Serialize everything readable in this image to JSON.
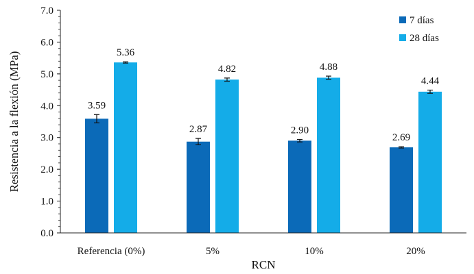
{
  "chart_data": {
    "type": "bar",
    "xlabel": "RCN",
    "ylabel": "Resistencia a la flexión (MPa)",
    "categories": [
      "Referencia (0%)",
      "5%",
      "10%",
      "20%"
    ],
    "ylim": [
      0,
      7.0
    ],
    "yticks": [
      "0.0",
      "1.0",
      "2.0",
      "3.0",
      "4.0",
      "5.0",
      "6.0",
      "7.0"
    ],
    "grid": false,
    "legend_position": "top-right",
    "series": [
      {
        "name": "7 días",
        "color": "#0B6AB8",
        "values": [
          3.59,
          2.87,
          2.9,
          2.69
        ],
        "labels": [
          "3.59",
          "2.87",
          "2.90",
          "2.69"
        ],
        "error": [
          0.13,
          0.1,
          0.04,
          0.02
        ]
      },
      {
        "name": "28 días",
        "color": "#14ACE8",
        "values": [
          5.36,
          4.82,
          4.88,
          4.44
        ],
        "labels": [
          "5.36",
          "4.82",
          "4.88",
          "4.44"
        ],
        "error": [
          0.02,
          0.05,
          0.05,
          0.05
        ]
      }
    ]
  }
}
